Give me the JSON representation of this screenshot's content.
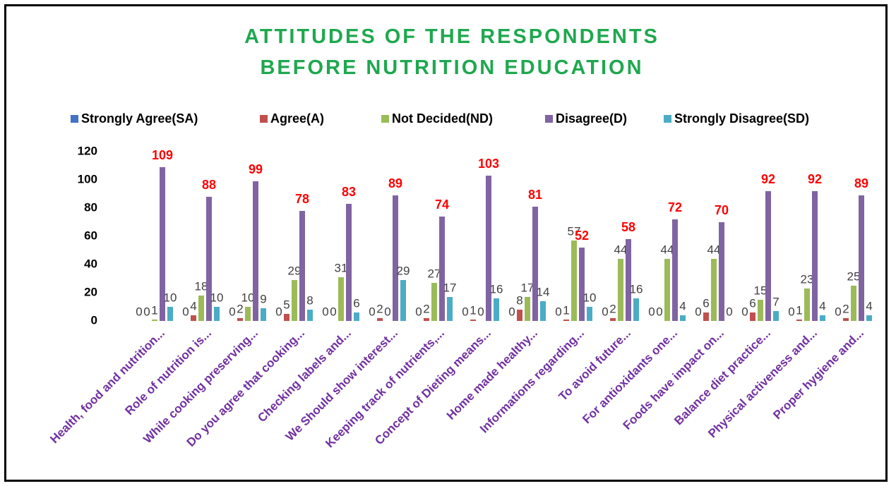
{
  "chart_data": {
    "type": "bar",
    "title": "ATTITUDES OF THE RESPONDENTS BEFORE NUTRITION EDUCATION",
    "categories": [
      "Health, food and nutrition...",
      "Role of nutrition is...",
      "While  cooking preserving...",
      "Do you agree that cooking...",
      "Checking labels and...",
      "We Should show  interest...",
      "Keeping track of nutrients,...",
      "Concept of Dieting means...",
      "Home made healthy...",
      "Informations regarding...",
      "To avoid future...",
      "For antioxidants one...",
      "Foods have impact on...",
      "Balance diet practice...",
      "Physical activeness and...",
      "Proper hygiene and..."
    ],
    "series": [
      {
        "name": "Strongly Agree(SA)",
        "color": "#4472c4",
        "values": [
          0,
          0,
          0,
          0,
          0,
          0,
          0,
          0,
          0,
          0,
          0,
          0,
          0,
          0,
          0,
          0
        ]
      },
      {
        "name": "Agree(A)",
        "color": "#c0504d",
        "values": [
          0,
          4,
          2,
          5,
          0,
          2,
          2,
          1,
          8,
          1,
          2,
          0,
          6,
          6,
          1,
          2
        ]
      },
      {
        "name": "Not Decided(ND)",
        "color": "#9bbb59",
        "values": [
          1,
          18,
          10,
          29,
          31,
          0,
          27,
          0,
          17,
          57,
          44,
          44,
          44,
          15,
          23,
          25
        ]
      },
      {
        "name": "Disagree(D)",
        "color": "#8064a2",
        "values": [
          109,
          88,
          99,
          78,
          83,
          89,
          74,
          103,
          81,
          52,
          58,
          72,
          70,
          92,
          92,
          89
        ]
      },
      {
        "name": "Strongly Disagree(SD)",
        "color": "#4bacc6",
        "values": [
          10,
          10,
          9,
          8,
          6,
          29,
          17,
          16,
          14,
          10,
          16,
          4,
          0,
          7,
          4,
          4
        ]
      }
    ],
    "ylim": [
      0,
      120
    ],
    "yticks": [
      0,
      20,
      40,
      60,
      80,
      100,
      120
    ],
    "grid": false,
    "legend": "top"
  }
}
